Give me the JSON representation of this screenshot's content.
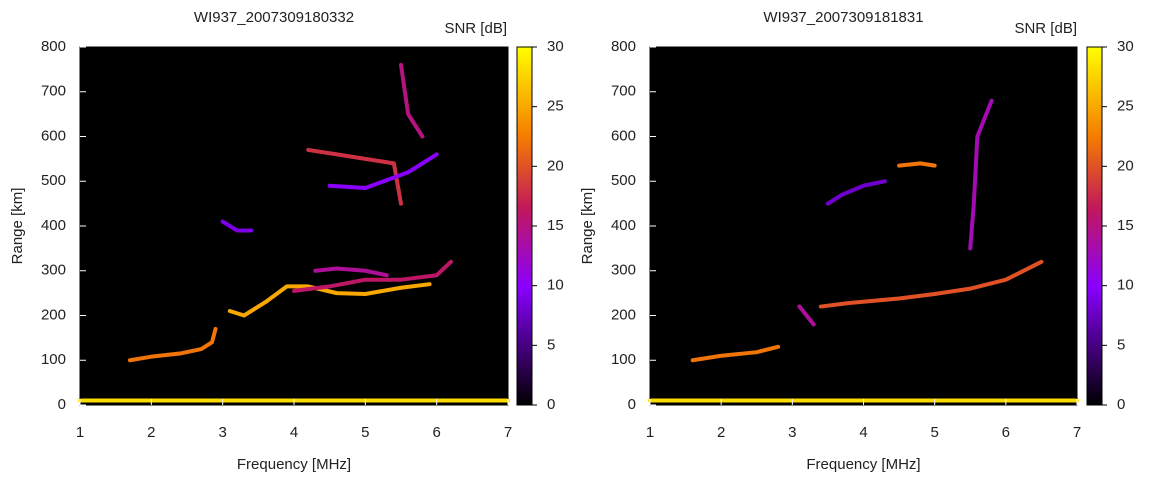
{
  "chart_data": [
    {
      "type": "heatmap",
      "title": "WI937_2007309180332",
      "x_label": "Frequency [MHz]",
      "y_label": "Range [km]",
      "xlim": [
        1,
        7
      ],
      "xticks": [
        1,
        2,
        3,
        4,
        5,
        6,
        7
      ],
      "ylim": [
        0,
        800
      ],
      "yticks": [
        0,
        100,
        200,
        300,
        400,
        500,
        600,
        700,
        800
      ],
      "colorbar_label": "SNR [dB]",
      "clim": [
        0,
        30
      ],
      "cticks": [
        0,
        5,
        10,
        15,
        20,
        25,
        30
      ],
      "series": [
        {
          "x": [
            1,
            7
          ],
          "values": [
            10,
            10
          ],
          "snr": 28
        },
        {
          "x": [
            1.7,
            2.0,
            2.4,
            2.7,
            2.85,
            2.9
          ],
          "values": [
            100,
            108,
            115,
            125,
            140,
            170
          ],
          "snr": 22
        },
        {
          "x": [
            3.1,
            3.3,
            3.6,
            3.9,
            4.2,
            4.6,
            5.0,
            5.5,
            5.9
          ],
          "values": [
            210,
            200,
            230,
            265,
            265,
            250,
            248,
            262,
            270
          ],
          "snr": 25
        },
        {
          "x": [
            4.0,
            4.5,
            5.0,
            5.5,
            6.0,
            6.2
          ],
          "values": [
            255,
            265,
            280,
            280,
            290,
            320
          ],
          "snr": 16
        },
        {
          "x": [
            4.3,
            4.6,
            5.0,
            5.3
          ],
          "values": [
            300,
            305,
            300,
            290
          ],
          "snr": 14
        },
        {
          "x": [
            3.0,
            3.2,
            3.4
          ],
          "values": [
            410,
            390,
            390
          ],
          "snr": 9
        },
        {
          "x": [
            4.2,
            4.6,
            5.0,
            5.4,
            5.5
          ],
          "values": [
            570,
            560,
            550,
            540,
            450
          ],
          "snr": 18
        },
        {
          "x": [
            4.5,
            5.0,
            5.6,
            6.0
          ],
          "values": [
            490,
            485,
            520,
            560
          ],
          "snr": 10
        },
        {
          "x": [
            5.5,
            5.6,
            5.8
          ],
          "values": [
            760,
            650,
            600
          ],
          "snr": 15
        }
      ]
    },
    {
      "type": "heatmap",
      "title": "WI937_2007309181831",
      "x_label": "Frequency [MHz]",
      "y_label": "Range [km]",
      "xlim": [
        1,
        7
      ],
      "xticks": [
        1,
        2,
        3,
        4,
        5,
        6,
        7
      ],
      "ylim": [
        0,
        800
      ],
      "yticks": [
        0,
        100,
        200,
        300,
        400,
        500,
        600,
        700,
        800
      ],
      "colorbar_label": "SNR [dB]",
      "clim": [
        0,
        30
      ],
      "cticks": [
        0,
        5,
        10,
        15,
        20,
        25,
        30
      ],
      "series": [
        {
          "x": [
            1,
            7
          ],
          "values": [
            10,
            10
          ],
          "snr": 28
        },
        {
          "x": [
            1.6,
            2.0,
            2.5,
            2.8
          ],
          "values": [
            100,
            110,
            118,
            130
          ],
          "snr": 22
        },
        {
          "x": [
            3.4,
            3.8,
            4.5,
            5.0,
            5.5,
            6.0,
            6.5
          ],
          "values": [
            220,
            228,
            238,
            248,
            260,
            280,
            320
          ],
          "snr": 20
        },
        {
          "x": [
            3.1,
            3.3
          ],
          "values": [
            220,
            180
          ],
          "snr": 14
        },
        {
          "x": [
            4.5,
            4.8,
            5.0
          ],
          "values": [
            535,
            540,
            535
          ],
          "snr": 22
        },
        {
          "x": [
            3.5,
            3.7,
            4.0,
            4.3
          ],
          "values": [
            450,
            470,
            490,
            500
          ],
          "snr": 8
        },
        {
          "x": [
            5.5,
            5.55,
            5.6,
            5.8
          ],
          "values": [
            350,
            450,
            600,
            680
          ],
          "snr": 13
        }
      ]
    }
  ]
}
